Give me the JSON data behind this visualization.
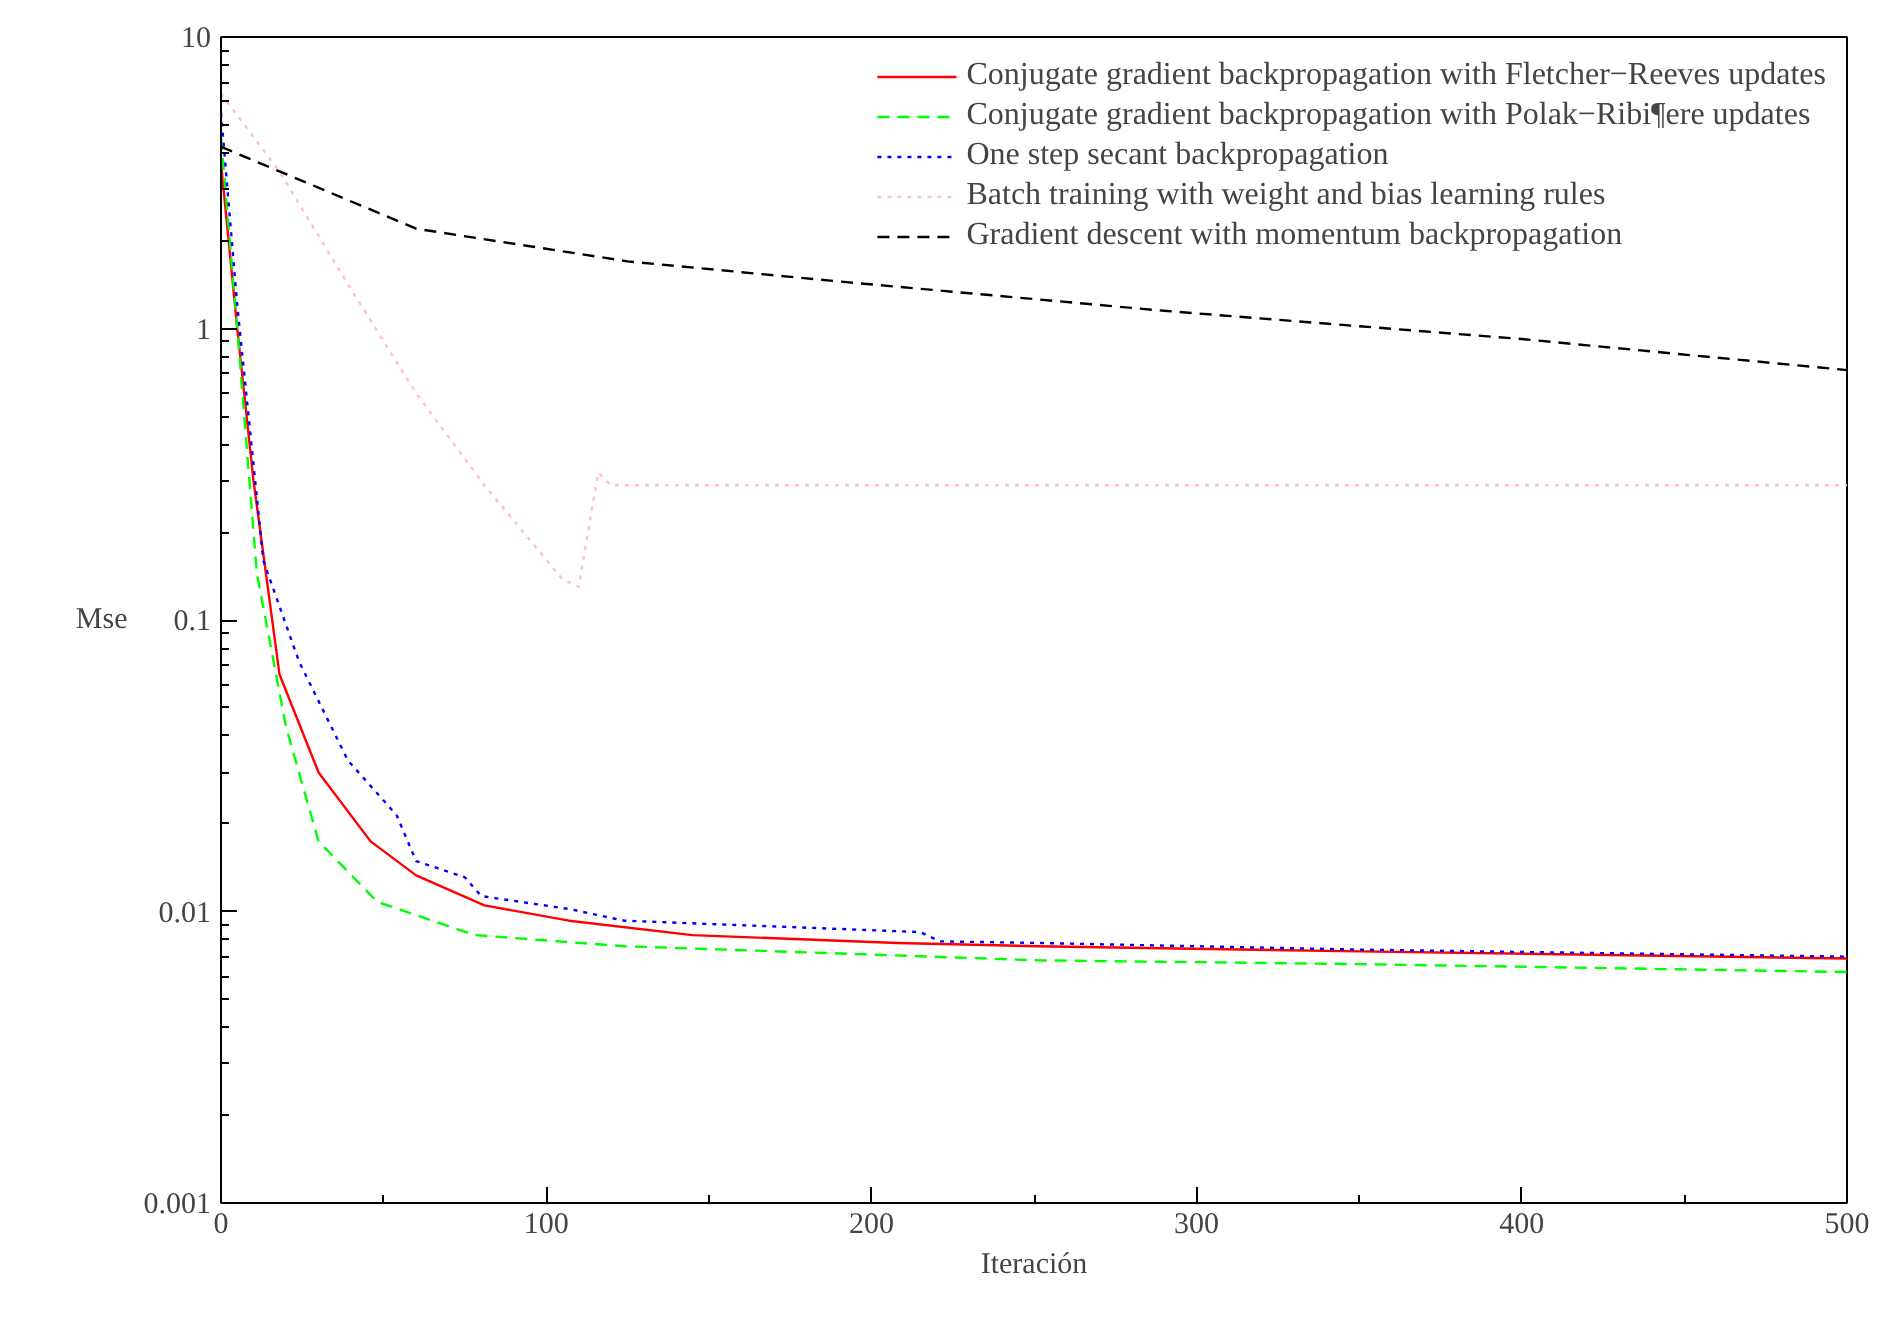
{
  "chart_data": {
    "type": "line",
    "xlabel": "Iteración",
    "ylabel": "Mse",
    "xlim": [
      0,
      500
    ],
    "xticks": [
      0,
      100,
      200,
      300,
      400,
      500
    ],
    "ylim": [
      0.001,
      10
    ],
    "yticks": [
      0.001,
      0.01,
      0.1,
      1,
      10
    ],
    "log": "y",
    "grid": false,
    "legend": "top right",
    "marker": "none",
    "series": [
      {
        "name": "Conjugate gradient backpropagation with Fletcher−Reeves updates",
        "color": "#ff0000",
        "line_style": "solid",
        "x": [
          0,
          5,
          10,
          18,
          30,
          46,
          60,
          81,
          107,
          145,
          208,
          251,
          350,
          500
        ],
        "values": [
          3.7,
          1.0,
          0.3,
          0.065,
          0.03,
          0.0174,
          0.0133,
          0.0105,
          0.0093,
          0.0083,
          0.0078,
          0.0076,
          0.0073,
          0.0069
        ]
      },
      {
        "name": "Conjugate gradient backpropagation with Polak−Ribi¶ere updates",
        "color": "#00ff00",
        "line_style": "dashed",
        "x": [
          0,
          5,
          11,
          20,
          30,
          48,
          78,
          124,
          187,
          251,
          350,
          500
        ],
        "values": [
          4.5,
          1.0,
          0.145,
          0.043,
          0.0174,
          0.0108,
          0.0083,
          0.0076,
          0.0072,
          0.0068,
          0.0066,
          0.0062
        ]
      },
      {
        "name": "One step secant backpropagation",
        "color": "#0000ff",
        "line_style": "dotted",
        "x": [
          0,
          5,
          13,
          24,
          39,
          54,
          60,
          75,
          80,
          107,
          124,
          215,
          221,
          251,
          350,
          500
        ],
        "values": [
          5.5,
          1.2,
          0.16,
          0.072,
          0.033,
          0.0214,
          0.0149,
          0.0131,
          0.0113,
          0.0102,
          0.0093,
          0.0085,
          0.0079,
          0.0078,
          0.0074,
          0.007
        ]
      },
      {
        "name": "Batch training with weight and bias learning rules",
        "color": "#ffc0cb",
        "line_style": "dotted",
        "x": [
          0,
          18,
          39,
          60,
          81,
          105,
          110,
          116,
          120,
          300,
          500
        ],
        "values": [
          6.4,
          3.45,
          1.42,
          0.6,
          0.29,
          0.138,
          0.13,
          0.32,
          0.29,
          0.29,
          0.29
        ]
      },
      {
        "name": "Gradient descent with momentum backpropagation",
        "color": "#000000",
        "line_style": "dashed",
        "x": [
          0,
          60,
          125,
          190,
          290,
          400,
          500
        ],
        "values": [
          4.2,
          2.2,
          1.7,
          1.45,
          1.15,
          0.92,
          0.72
        ]
      }
    ]
  }
}
